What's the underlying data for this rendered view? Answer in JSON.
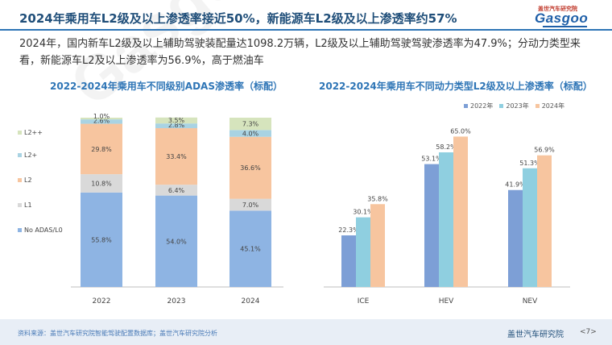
{
  "header": {
    "title": "2024年乘用车L2级及以上渗透率接近50%，新能源车L2级及以上渗透率约57%",
    "logo_top": "盖世汽车研究院",
    "logo_word": "Gasgoo"
  },
  "subtitle": "2024年，国内新车L2级及以上辅助驾驶装配量达1098.2万辆，L2级及以上辅助驾驶驾驶渗透率为47.9%；分动力类型来看，新能源车L2及以上渗透率为56.9%，高于燃油车",
  "watermark": "Gasgoo",
  "chart_data": [
    {
      "type": "bar",
      "stacked": true,
      "title": "2022-2024年乘用车不同级别ADAS渗透率（标配）",
      "categories": [
        "2022",
        "2023",
        "2024"
      ],
      "series": [
        {
          "name": "No ADAS/L0",
          "values": [
            55.8,
            54.0,
            45.1
          ],
          "labels": [
            "55.8%",
            "54.0%",
            "45.1%"
          ],
          "color": "#8eb4e3"
        },
        {
          "name": "L1",
          "values": [
            10.8,
            6.4,
            7.0
          ],
          "labels": [
            "10.8%",
            "6.4%",
            "7.0%"
          ],
          "color": "#d9d9d9"
        },
        {
          "name": "L2",
          "values": [
            29.8,
            33.4,
            36.6
          ],
          "labels": [
            "29.8%",
            "33.4%",
            "36.6%"
          ],
          "color": "#f7c59f"
        },
        {
          "name": "L2+",
          "values": [
            2.6,
            2.8,
            4.0
          ],
          "labels": [
            "2.6%",
            "2.8%",
            "4.0%"
          ],
          "color": "#a9d3e3"
        },
        {
          "name": "L2++",
          "values": [
            1.0,
            3.5,
            7.3
          ],
          "labels": [
            "1.0%",
            "3.5%",
            "7.3%"
          ],
          "color": "#d6e4bd"
        }
      ],
      "legend": [
        "L2++",
        "L2+",
        "L2",
        "L1",
        "No ADAS/L0"
      ],
      "legend_position": "left",
      "ylim": [
        0,
        100
      ]
    },
    {
      "type": "bar",
      "title": "2022-2024年乘用车不同动力类型L2级及以上渗透率（标配）",
      "categories": [
        "ICE",
        "HEV",
        "NEV"
      ],
      "series": [
        {
          "name": "2022年",
          "values": [
            22.3,
            53.1,
            41.9
          ],
          "labels": [
            "22.3%",
            "53.1%",
            "41.9%"
          ],
          "color": "#7d9fd6"
        },
        {
          "name": "2023年",
          "values": [
            30.1,
            58.2,
            51.3
          ],
          "labels": [
            "30.1%",
            "58.2%",
            "51.3%"
          ],
          "color": "#8fcfe0"
        },
        {
          "name": "2024年",
          "values": [
            35.8,
            65.0,
            56.9
          ],
          "labels": [
            "35.8%",
            "65.0%",
            "56.9%"
          ],
          "color": "#f7c59f"
        }
      ],
      "legend_position": "top-right",
      "ylim": [
        0,
        70
      ]
    }
  ],
  "footer": {
    "source": "资料来源：盖世汽车研究院智能驾驶配置数据库；盖世汽车研究院分析",
    "org": "盖世汽车研究院",
    "page": "<7>"
  }
}
